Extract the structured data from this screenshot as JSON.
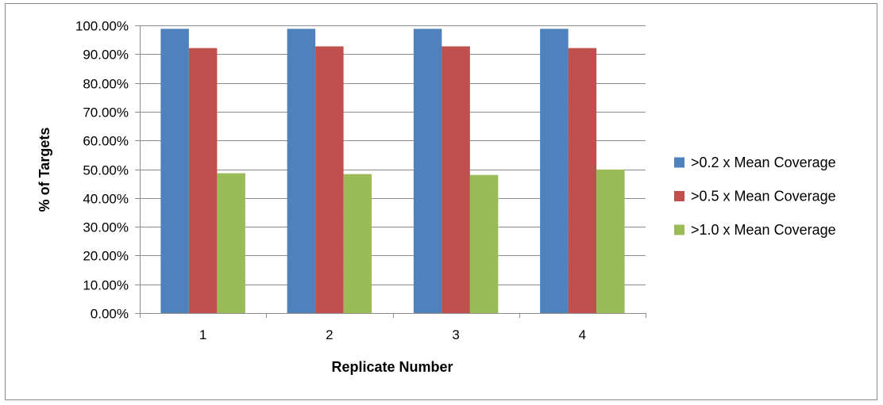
{
  "chart_data": {
    "type": "bar",
    "title": "",
    "xlabel": "Replicate Number",
    "ylabel": "% of Targets",
    "categories": [
      "1",
      "2",
      "3",
      "4"
    ],
    "ylim": [
      0,
      100
    ],
    "y_ticks": [
      "0.00%",
      "10.00%",
      "20.00%",
      "30.00%",
      "40.00%",
      "50.00%",
      "60.00%",
      "70.00%",
      "80.00%",
      "90.00%",
      "100.00%"
    ],
    "grid": true,
    "legend_position": "right",
    "series": [
      {
        "name": ">0.2 x Mean Coverage",
        "color": "#4F81BD",
        "values": [
          98.8,
          98.8,
          98.8,
          98.8
        ]
      },
      {
        "name": ">0.5 x Mean Coverage",
        "color": "#C0504D",
        "values": [
          92.1,
          92.7,
          92.7,
          92.1
        ]
      },
      {
        "name": ">1.0 x Mean Coverage",
        "color": "#9BBB59",
        "values": [
          48.6,
          48.3,
          48.0,
          49.9
        ]
      }
    ]
  }
}
